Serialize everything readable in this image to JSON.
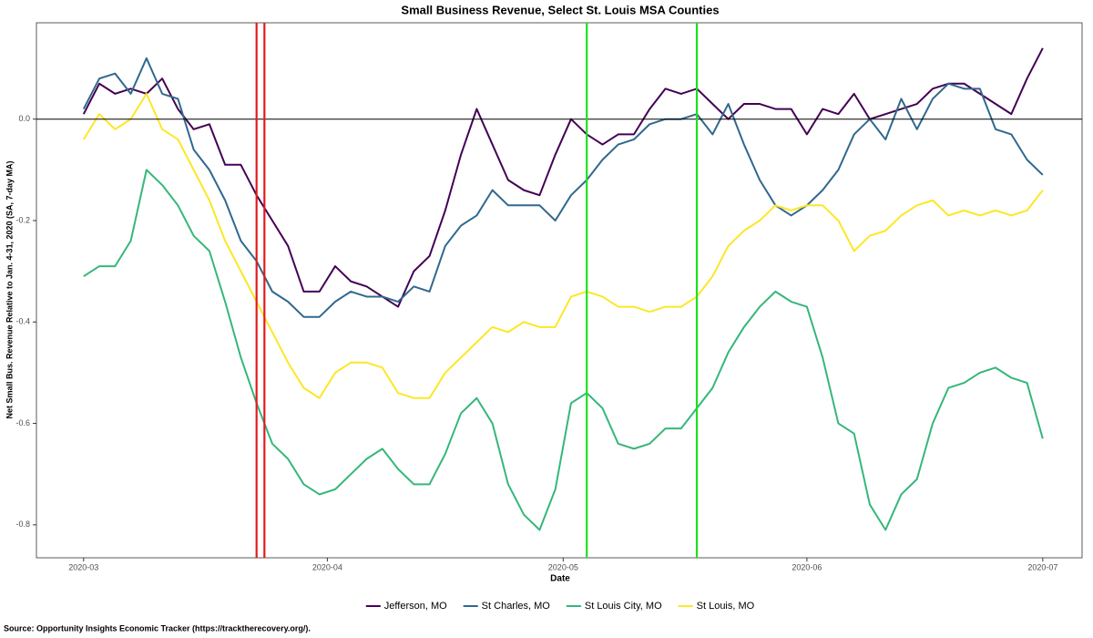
{
  "chart_data": {
    "type": "line",
    "title": "Small Business Revenue, Select St. Louis MSA Counties",
    "x_label": "Date",
    "y_label": "Net Small Bus. Revenue Relative to Jan. 4-31, 2020 (SA, 7-day MA)",
    "source": "Source: Opportunity Insights Economic Tracker (https://tracktherecovery.org/).",
    "x": [
      0,
      2,
      4,
      6,
      8,
      10,
      12,
      14,
      16,
      18,
      20,
      22,
      24,
      26,
      28,
      30,
      32,
      34,
      36,
      38,
      40,
      42,
      44,
      46,
      48,
      50,
      52,
      54,
      56,
      58,
      60,
      62,
      64,
      66,
      68,
      70,
      72,
      74,
      76,
      78,
      80,
      82,
      84,
      86,
      88,
      90,
      92,
      94,
      96,
      98,
      100,
      102,
      104,
      106,
      108,
      110,
      112,
      114,
      116,
      118,
      120,
      122
    ],
    "xlim": [
      -6,
      127
    ],
    "xticks": [
      {
        "value": 0,
        "label": "2020-03"
      },
      {
        "value": 31,
        "label": "2020-04"
      },
      {
        "value": 61,
        "label": "2020-05"
      },
      {
        "value": 92,
        "label": "2020-06"
      },
      {
        "value": 122,
        "label": "2020-07"
      }
    ],
    "ylim": [
      -0.865,
      0.19
    ],
    "yticks": [
      -0.8,
      -0.6,
      -0.4,
      -0.2,
      {
        "value": 0,
        "label": "0.0"
      }
    ],
    "grid": false,
    "legend": "bottom",
    "hline": {
      "y": 0,
      "color": "#000000"
    },
    "vlines": [
      {
        "x": 22,
        "color": "#e31a1c"
      },
      {
        "x": 23,
        "color": "#e31a1c"
      },
      {
        "x": 64,
        "color": "#1ee01e"
      },
      {
        "x": 78,
        "color": "#1ee01e"
      }
    ],
    "series": [
      {
        "name": "Jefferson, MO",
        "color": "#440154",
        "values": [
          0.01,
          0.07,
          0.05,
          0.06,
          0.05,
          0.08,
          0.02,
          -0.02,
          -0.01,
          -0.09,
          -0.09,
          -0.15,
          -0.2,
          -0.25,
          -0.34,
          -0.34,
          -0.29,
          -0.32,
          -0.33,
          -0.35,
          -0.37,
          -0.3,
          -0.27,
          -0.18,
          -0.07,
          0.02,
          -0.05,
          -0.12,
          -0.14,
          -0.15,
          -0.07,
          0.0,
          -0.03,
          -0.05,
          -0.03,
          -0.03,
          0.02,
          0.06,
          0.05,
          0.06,
          0.03,
          0.0,
          0.03,
          0.03,
          0.02,
          0.02,
          -0.03,
          0.02,
          0.01,
          0.05,
          0.0,
          0.01,
          0.02,
          0.03,
          0.06,
          0.07,
          0.07,
          0.05,
          0.03,
          0.01,
          0.08,
          0.14
        ]
      },
      {
        "name": "St Charles, MO",
        "color": "#31688e",
        "values": [
          0.02,
          0.08,
          0.09,
          0.05,
          0.12,
          0.05,
          0.04,
          -0.06,
          -0.1,
          -0.16,
          -0.24,
          -0.28,
          -0.34,
          -0.36,
          -0.39,
          -0.39,
          -0.36,
          -0.34,
          -0.35,
          -0.35,
          -0.36,
          -0.33,
          -0.34,
          -0.25,
          -0.21,
          -0.19,
          -0.14,
          -0.17,
          -0.17,
          -0.17,
          -0.2,
          -0.15,
          -0.12,
          -0.08,
          -0.05,
          -0.04,
          -0.01,
          0.0,
          0.0,
          0.01,
          -0.03,
          0.03,
          -0.05,
          -0.12,
          -0.17,
          -0.19,
          -0.17,
          -0.14,
          -0.1,
          -0.03,
          0.0,
          -0.04,
          0.04,
          -0.02,
          0.04,
          0.07,
          0.06,
          0.06,
          -0.02,
          -0.03,
          -0.08,
          -0.11
        ]
      },
      {
        "name": "St Louis City, MO",
        "color": "#35b779",
        "values": [
          -0.31,
          -0.29,
          -0.29,
          -0.24,
          -0.1,
          -0.13,
          -0.17,
          -0.23,
          -0.26,
          -0.36,
          -0.47,
          -0.56,
          -0.64,
          -0.67,
          -0.72,
          -0.74,
          -0.73,
          -0.7,
          -0.67,
          -0.65,
          -0.69,
          -0.72,
          -0.72,
          -0.66,
          -0.58,
          -0.55,
          -0.6,
          -0.72,
          -0.78,
          -0.81,
          -0.73,
          -0.56,
          -0.54,
          -0.57,
          -0.64,
          -0.65,
          -0.64,
          -0.61,
          -0.61,
          -0.57,
          -0.53,
          -0.46,
          -0.41,
          -0.37,
          -0.34,
          -0.36,
          -0.37,
          -0.47,
          -0.6,
          -0.62,
          -0.76,
          -0.81,
          -0.74,
          -0.71,
          -0.6,
          -0.53,
          -0.52,
          -0.5,
          -0.49,
          -0.51,
          -0.52,
          -0.63
        ]
      },
      {
        "name": "St Louis, MO",
        "color": "#fde725",
        "values": [
          -0.04,
          0.01,
          -0.02,
          0.0,
          0.05,
          -0.02,
          -0.04,
          -0.1,
          -0.16,
          -0.24,
          -0.3,
          -0.36,
          -0.42,
          -0.48,
          -0.53,
          -0.55,
          -0.5,
          -0.48,
          -0.48,
          -0.49,
          -0.54,
          -0.55,
          -0.55,
          -0.5,
          -0.47,
          -0.44,
          -0.41,
          -0.42,
          -0.4,
          -0.41,
          -0.41,
          -0.35,
          -0.34,
          -0.35,
          -0.37,
          -0.37,
          -0.38,
          -0.37,
          -0.37,
          -0.35,
          -0.31,
          -0.25,
          -0.22,
          -0.2,
          -0.17,
          -0.18,
          -0.17,
          -0.17,
          -0.2,
          -0.26,
          -0.23,
          -0.22,
          -0.19,
          -0.17,
          -0.16,
          -0.19,
          -0.18,
          -0.19,
          -0.18,
          -0.19,
          -0.18,
          -0.14
        ]
      }
    ]
  }
}
